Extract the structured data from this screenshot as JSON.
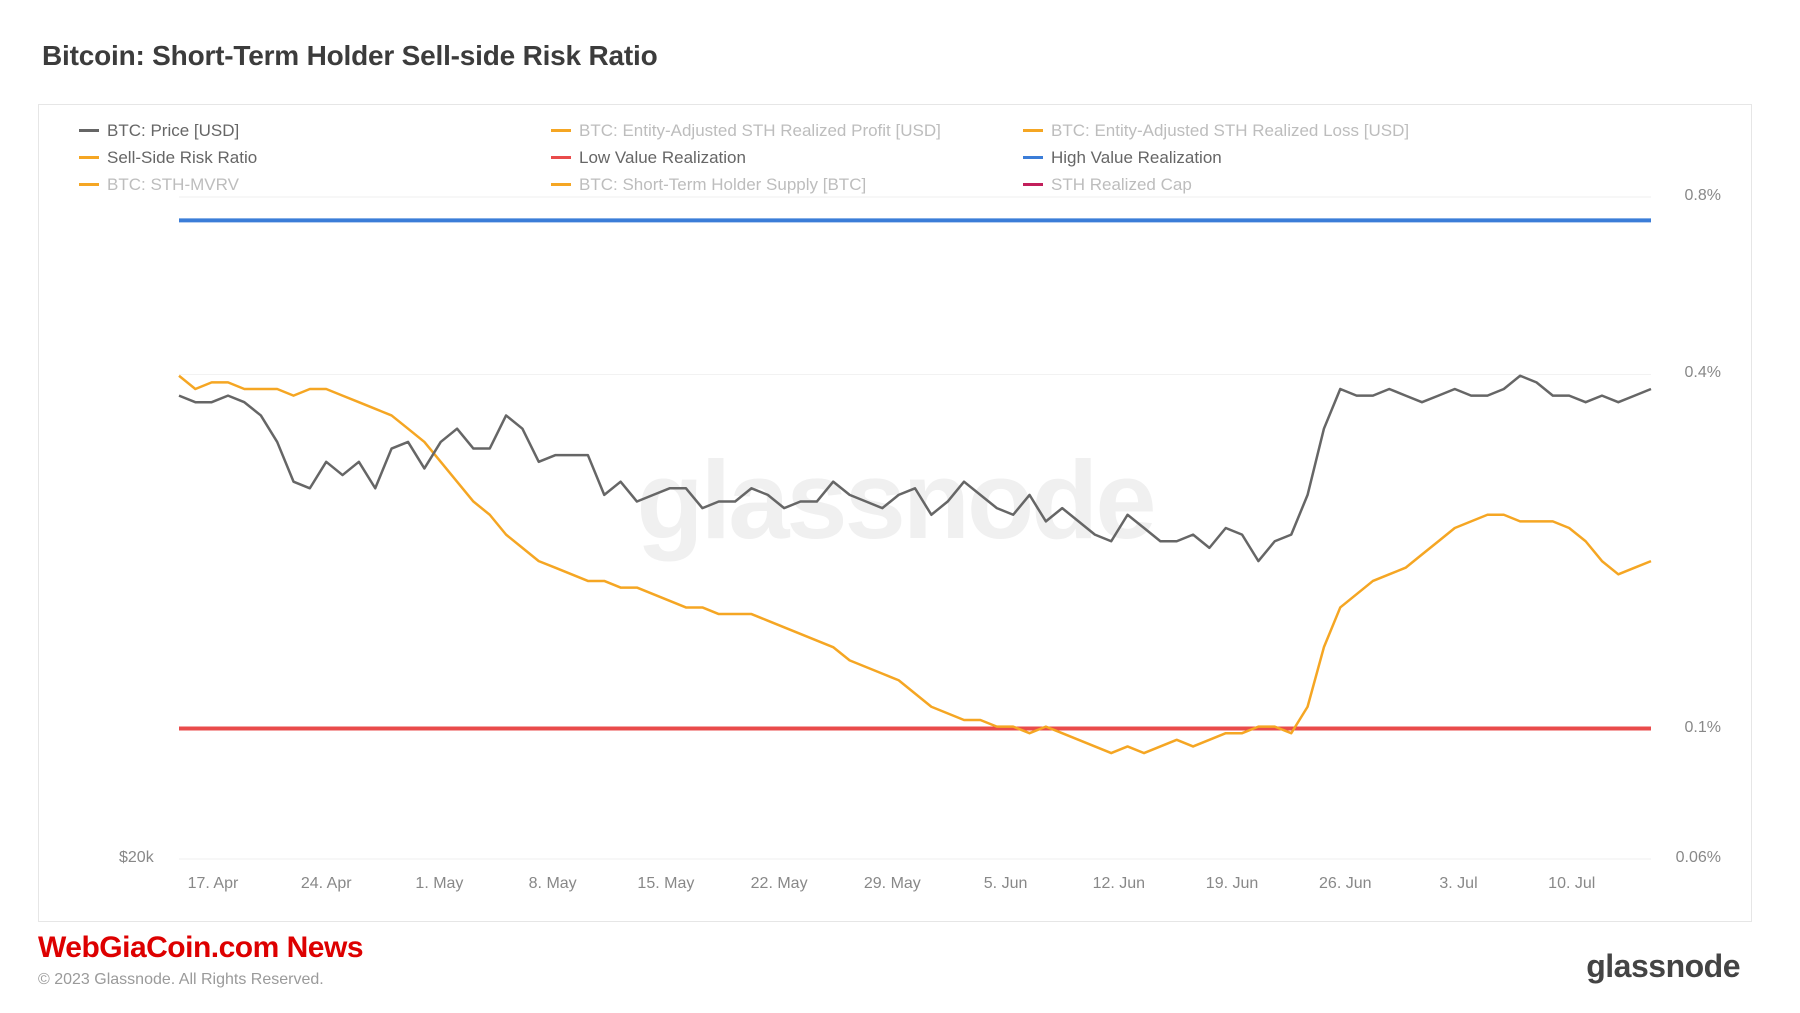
{
  "title": "Bitcoin: Short-Term Holder Sell-side Risk Ratio",
  "watermark": "glassnode",
  "footer": {
    "brand": "WebGiaCoin.com News",
    "copyright": "© 2023 Glassnode. All Rights Reserved.",
    "logo": "glassnode"
  },
  "legend": [
    {
      "label": "BTC: Price [USD]",
      "color": "#666666",
      "muted": false
    },
    {
      "label": "BTC: Entity-Adjusted STH Realized Profit [USD]",
      "color": "#f5a623",
      "muted": true
    },
    {
      "label": "BTC: Entity-Adjusted STH Realized Loss [USD]",
      "color": "#f5a623",
      "muted": true
    },
    {
      "label": "Sell-Side Risk Ratio",
      "color": "#f5a623",
      "muted": false
    },
    {
      "label": "Low Value Realization",
      "color": "#e94b4b",
      "muted": false
    },
    {
      "label": "High Value Realization",
      "color": "#3b7dd8",
      "muted": false
    },
    {
      "label": "BTC: STH-MVRV",
      "color": "#f5a623",
      "muted": true
    },
    {
      "label": "BTC: Short-Term Holder Supply [BTC]",
      "color": "#f5a623",
      "muted": true
    },
    {
      "label": "STH Realized Cap",
      "color": "#c21f5b",
      "muted": true
    }
  ],
  "chart": {
    "type": "line",
    "background": "#ffffff",
    "grid_color": "#eaeaea",
    "axis_text_color": "#888888",
    "axis_fontsize": 16,
    "yleft": {
      "ticks": [
        {
          "v": 20000,
          "label": "$20k",
          "logpos": 0
        }
      ],
      "scale": "log"
    },
    "yright": {
      "scale": "log",
      "ticks": [
        {
          "v": 0.06,
          "label": "0.06%",
          "logpos": 0.0
        },
        {
          "v": 0.1,
          "label": "0.1%",
          "logpos": 0.197
        },
        {
          "v": 0.4,
          "label": "0.4%",
          "logpos": 0.732
        },
        {
          "v": 0.8,
          "label": "0.8%",
          "logpos": 1.0
        }
      ]
    },
    "x": {
      "ticks": [
        "17. Apr",
        "24. Apr",
        "1. May",
        "8. May",
        "15. May",
        "22. May",
        "29. May",
        "5. Jun",
        "12. Jun",
        "19. Jun",
        "26. Jun",
        "3. Jul",
        "10. Jul"
      ],
      "npoints": 91
    },
    "series": {
      "high_value": {
        "color": "#3b7dd8",
        "width": 2,
        "value_pct": 0.73
      },
      "low_value": {
        "color": "#e94b4b",
        "width": 2,
        "value_pct": 0.1
      },
      "btc_price": {
        "color": "#666666",
        "width": 2.5,
        "yvals": [
          0.7,
          0.69,
          0.69,
          0.7,
          0.69,
          0.67,
          0.63,
          0.57,
          0.56,
          0.6,
          0.58,
          0.6,
          0.56,
          0.62,
          0.63,
          0.59,
          0.63,
          0.65,
          0.62,
          0.62,
          0.67,
          0.65,
          0.6,
          0.61,
          0.61,
          0.61,
          0.55,
          0.57,
          0.54,
          0.55,
          0.56,
          0.56,
          0.53,
          0.54,
          0.54,
          0.56,
          0.55,
          0.53,
          0.54,
          0.54,
          0.57,
          0.55,
          0.54,
          0.53,
          0.55,
          0.56,
          0.52,
          0.54,
          0.57,
          0.55,
          0.53,
          0.52,
          0.55,
          0.51,
          0.53,
          0.51,
          0.49,
          0.48,
          0.52,
          0.5,
          0.48,
          0.48,
          0.49,
          0.47,
          0.5,
          0.49,
          0.45,
          0.48,
          0.49,
          0.55,
          0.65,
          0.71,
          0.7,
          0.7,
          0.71,
          0.7,
          0.69,
          0.7,
          0.71,
          0.7,
          0.7,
          0.71,
          0.73,
          0.72,
          0.7,
          0.7,
          0.69,
          0.7,
          0.69,
          0.7,
          0.71
        ]
      },
      "sell_side": {
        "color": "#f5a623",
        "width": 2.5,
        "yvals": [
          0.73,
          0.71,
          0.72,
          0.72,
          0.71,
          0.71,
          0.71,
          0.7,
          0.71,
          0.71,
          0.7,
          0.69,
          0.68,
          0.67,
          0.65,
          0.63,
          0.6,
          0.57,
          0.54,
          0.52,
          0.49,
          0.47,
          0.45,
          0.44,
          0.43,
          0.42,
          0.42,
          0.41,
          0.41,
          0.4,
          0.39,
          0.38,
          0.38,
          0.37,
          0.37,
          0.37,
          0.36,
          0.35,
          0.34,
          0.33,
          0.32,
          0.3,
          0.29,
          0.28,
          0.27,
          0.25,
          0.23,
          0.22,
          0.21,
          0.21,
          0.2,
          0.2,
          0.19,
          0.2,
          0.19,
          0.18,
          0.17,
          0.16,
          0.17,
          0.16,
          0.17,
          0.18,
          0.17,
          0.18,
          0.19,
          0.19,
          0.2,
          0.2,
          0.19,
          0.23,
          0.32,
          0.38,
          0.4,
          0.42,
          0.43,
          0.44,
          0.46,
          0.48,
          0.5,
          0.51,
          0.52,
          0.52,
          0.51,
          0.51,
          0.51,
          0.5,
          0.48,
          0.45,
          0.43,
          0.44,
          0.45
        ]
      }
    }
  }
}
